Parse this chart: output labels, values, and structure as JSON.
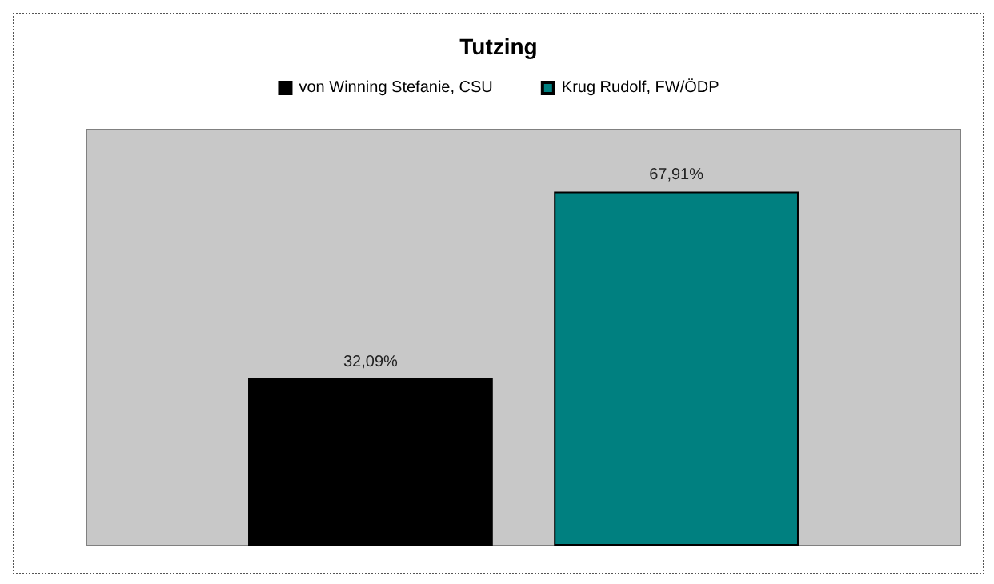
{
  "chart_data": {
    "type": "bar",
    "title": "Tutzing",
    "categories": [
      null
    ],
    "legend": "top",
    "series": [
      {
        "name": "von Winning Stefanie, CSU",
        "color": "#000000",
        "values": [
          32.09
        ],
        "value_labels": [
          "32,09%"
        ]
      },
      {
        "name": "Krug Rudolf, FW/ÖDP",
        "color": "#008080",
        "values": [
          67.91
        ],
        "value_labels": [
          "67,91%"
        ]
      }
    ]
  }
}
